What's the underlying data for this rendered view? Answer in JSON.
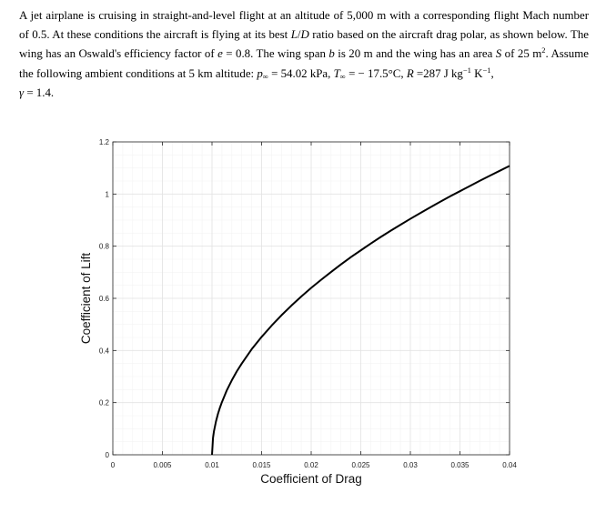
{
  "problem": {
    "s1": "A jet airplane is cruising in straight-and-level flight at an altitude of 5,000 m with a corresponding flight Mach number of 0.5. At these conditions the aircraft is flying at its best ",
    "ld_L": "L",
    "ld_slash": "/",
    "ld_D": "D",
    "s2": " ratio based on the aircraft drag polar, as shown below. The wing has an Oswald's efficiency factor of ",
    "e_sym": "e",
    "e_val": " = 0.8. The wing span ",
    "b_sym": "b",
    "b_val": " is 20 m and the wing has an area ",
    "S_sym": "S",
    "S_val": " of 25 m",
    "S_exp": "2",
    "s3": ". Assume the following ambient conditions at 5 km altitude: ",
    "p_sym": "p",
    "inf_sub": "∞",
    "p_val": " = 54.02 kPa, ",
    "T_sym": "T",
    "T_val": " = − 17.5°C, ",
    "R_sym": "R",
    "R_val": " =287 J kg",
    "R_exp1": "−1",
    "R_k": " K",
    "R_exp2": "−1",
    "R_end": ",",
    "gamma": "γ",
    "gamma_val": " = 1.4."
  },
  "chart_data": {
    "type": "line",
    "xlabel": "Coefficient of Drag",
    "ylabel": "Coefficient of Lift",
    "xlim": [
      0,
      0.04
    ],
    "ylim": [
      0,
      1.2
    ],
    "xticks": [
      0,
      0.005,
      0.01,
      0.015,
      0.02,
      0.025,
      0.03,
      0.035,
      0.04
    ],
    "xtick_labels": [
      "0",
      "0.005",
      "0.01",
      "0.015",
      "0.02",
      "0.025",
      "0.03",
      "0.035",
      "0.04"
    ],
    "yticks": [
      0,
      0.2,
      0.4,
      0.6,
      0.8,
      1.0,
      1.2
    ],
    "ytick_labels": [
      "0",
      "0.2",
      "0.4",
      "0.6",
      "0.8",
      "1",
      "1.2"
    ],
    "grid": true,
    "minor_grid": true,
    "line_color": "#000000",
    "series": [
      {
        "x": [
          0.01,
          0.0101,
          0.0102,
          0.0104,
          0.0106,
          0.0108,
          0.011,
          0.0115,
          0.012,
          0.0125,
          0.013,
          0.014,
          0.015,
          0.016,
          0.017,
          0.018,
          0.019,
          0.02,
          0.021,
          0.022,
          0.023,
          0.024,
          0.025,
          0.026,
          0.027,
          0.028,
          0.029,
          0.03,
          0.031,
          0.032,
          0.033,
          0.034,
          0.035,
          0.036,
          0.037,
          0.038,
          0.039,
          0.04
        ],
        "y": [
          0.0,
          0.064,
          0.091,
          0.128,
          0.157,
          0.181,
          0.202,
          0.248,
          0.286,
          0.32,
          0.35,
          0.405,
          0.452,
          0.495,
          0.535,
          0.572,
          0.607,
          0.64,
          0.671,
          0.701,
          0.73,
          0.758,
          0.784,
          0.81,
          0.835,
          0.859,
          0.882,
          0.905,
          0.927,
          0.949,
          0.97,
          0.991,
          1.011,
          1.031,
          1.051,
          1.07,
          1.089,
          1.108
        ]
      }
    ]
  }
}
